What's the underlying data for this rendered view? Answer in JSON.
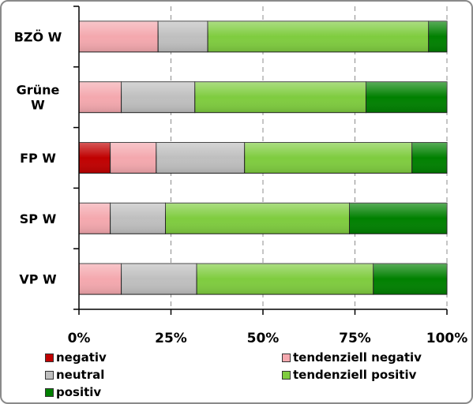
{
  "chart_data": {
    "type": "bar",
    "orientation": "horizontal",
    "stacked": true,
    "normalized": true,
    "categories": [
      "BZÖ W",
      "Grüne W",
      "FP W",
      "SP W",
      "VP W"
    ],
    "category_label_lines": [
      [
        "BZÖ W"
      ],
      [
        "Grüne",
        "W"
      ],
      [
        "FP W"
      ],
      [
        "SP W"
      ],
      [
        "VP W"
      ]
    ],
    "series": [
      {
        "name": "negativ",
        "color": "#c00000",
        "values": [
          0,
          0,
          8.5,
          0,
          0
        ]
      },
      {
        "name": "tendenziell negativ",
        "color": "#f4a8ae",
        "values": [
          21.5,
          11.5,
          12.5,
          8.5,
          11.5
        ]
      },
      {
        "name": "neutral",
        "color": "#bfbfbf",
        "values": [
          13.5,
          20,
          24,
          15,
          20.5
        ]
      },
      {
        "name": "tendenziell positiv",
        "color": "#7fcc3f",
        "values": [
          60,
          46.5,
          45.5,
          50,
          48
        ]
      },
      {
        "name": "positiv",
        "color": "#008000",
        "values": [
          5,
          22,
          9.5,
          26.5,
          20
        ]
      }
    ],
    "xlim": [
      0,
      100
    ],
    "xticks": [
      0,
      25,
      50,
      75,
      100
    ],
    "xtick_labels": [
      "0%",
      "25%",
      "50%",
      "75%",
      "100%"
    ],
    "grid": true,
    "legend_position": "bottom"
  }
}
